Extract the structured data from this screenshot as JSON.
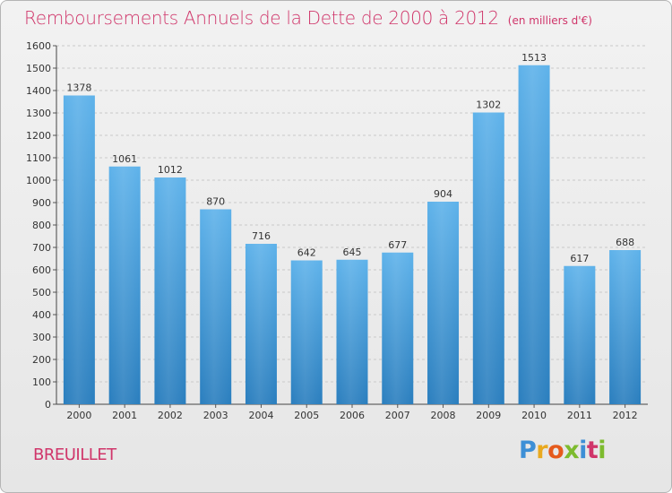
{
  "header": {
    "title": "Remboursements Annuels de la Dette de 2000 à 2012",
    "unit": "(en milliers d'€)"
  },
  "footer": {
    "commune": "BREUILLET",
    "brand": [
      "P",
      "r",
      "o",
      "x",
      "i",
      "t",
      "i"
    ]
  },
  "colors": {
    "title": "#d0356a",
    "bar_top": "#5aaee8",
    "bar_bottom": "#2a7fbf",
    "grid": "#c8c8c8"
  },
  "chart_data": {
    "type": "bar",
    "title": "Remboursements Annuels de la Dette de 2000 à 2012",
    "xlabel": "",
    "ylabel": "",
    "categories": [
      "2000",
      "2001",
      "2002",
      "2003",
      "2004",
      "2005",
      "2006",
      "2007",
      "2008",
      "2009",
      "2010",
      "2011",
      "2012"
    ],
    "values": [
      1378,
      1061,
      1012,
      870,
      716,
      642,
      645,
      677,
      904,
      1302,
      1513,
      617,
      688
    ],
    "ylim": [
      0,
      1600
    ],
    "yticks": [
      0,
      100,
      200,
      300,
      400,
      500,
      600,
      700,
      800,
      900,
      1000,
      1100,
      1200,
      1300,
      1400,
      1500,
      1600
    ],
    "grid": true,
    "data_labels": true
  }
}
